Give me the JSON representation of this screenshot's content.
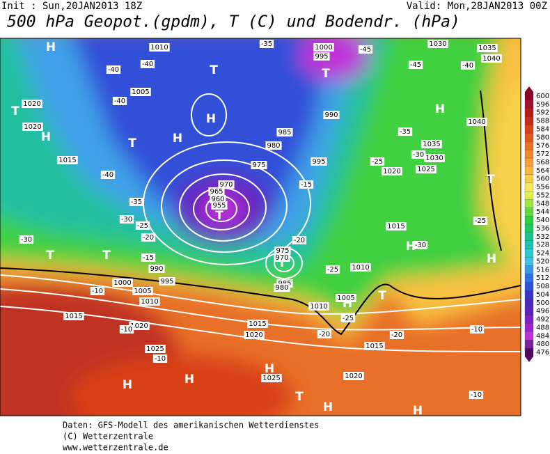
{
  "header": {
    "init": "Init : Sun,20JAN2013 18Z",
    "valid": "Valid: Mon,28JAN2013 00Z",
    "title": "500 hPa Geopot.(gpdm), T (C) und Bodendr. (hPa)"
  },
  "colorbar": {
    "labels": [
      600,
      596,
      592,
      588,
      584,
      580,
      576,
      572,
      568,
      564,
      560,
      556,
      552,
      548,
      544,
      540,
      536,
      532,
      528,
      524,
      520,
      516,
      512,
      508,
      504,
      500,
      496,
      492,
      488,
      484,
      480,
      476
    ],
    "colors": [
      "#8c0026",
      "#a01030",
      "#b81a1a",
      "#c82818",
      "#d84018",
      "#e05820",
      "#e87028",
      "#f08830",
      "#f8a038",
      "#f8b840",
      "#f8d048",
      "#f8e858",
      "#e0f050",
      "#a0e840",
      "#60d840",
      "#30d040",
      "#20c860",
      "#20c088",
      "#20c0b0",
      "#30c8d0",
      "#40c0e8",
      "#3898e8",
      "#3070e0",
      "#3050d8",
      "#3838c8",
      "#4828c0",
      "#6020c0",
      "#8020c8",
      "#a020d0",
      "#c030d8",
      "#8020a0",
      "#500860"
    ]
  },
  "map_labels": {
    "pressure_centers": [
      "H",
      "T",
      "H",
      "T",
      "H",
      "T",
      "H",
      "T",
      "T",
      "T",
      "H",
      "H",
      "T",
      "H",
      "H",
      "H",
      "H",
      "T",
      "H",
      "H",
      "T",
      "T",
      "T",
      "H"
    ],
    "isobars": [
      1010,
      1005,
      1020,
      1020,
      1015,
      1000,
      995,
      990,
      985,
      980,
      975,
      970,
      965,
      960,
      955,
      995,
      1020,
      1015,
      1010,
      990,
      995,
      1000,
      1005,
      1010,
      1015,
      1020,
      1025,
      1015,
      1020,
      1025,
      1020,
      1015,
      1010,
      1005,
      1030,
      1035,
      1040,
      1040,
      1035,
      1030,
      1025,
      985,
      980,
      975,
      970
    ],
    "temperatures": [
      -35,
      -40,
      -40,
      -40,
      -40,
      -35,
      -30,
      -25,
      -20,
      -15,
      -10,
      -10,
      -10,
      -15,
      -20,
      -25,
      -25,
      -20,
      -20,
      -25,
      -30,
      -35,
      -30,
      -25,
      -45,
      -45,
      -40,
      -10,
      -10,
      -30
    ]
  },
  "footer": [
    "Daten: GFS-Modell des amerikanischen Wetterdienstes",
    "(C) Wetterzentrale",
    "www.wetterzentrale.de"
  ]
}
